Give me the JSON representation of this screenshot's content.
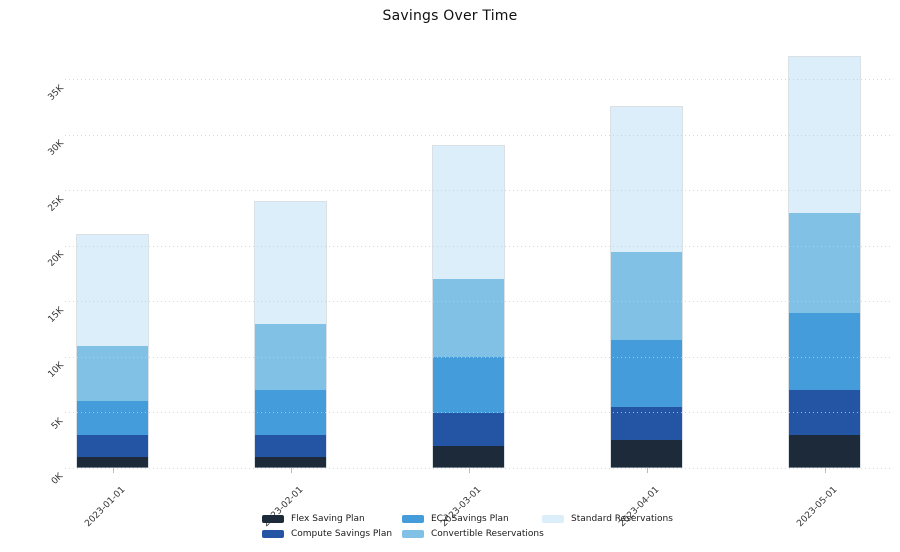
{
  "chart_data": {
    "type": "bar",
    "stacked": true,
    "title": "Savings Over Time",
    "categories": [
      "2023-01-01",
      "2023-02-01",
      "2023-03-01",
      "2023-04-01",
      "2023-05-01"
    ],
    "series": [
      {
        "name": "Flex Saving Plan",
        "color": "#1c2a39",
        "values": [
          1000,
          1000,
          2000,
          2500,
          3000
        ]
      },
      {
        "name": "Compute Savings Plan",
        "color": "#2355a4",
        "values": [
          2000,
          2000,
          3000,
          3000,
          4000
        ]
      },
      {
        "name": "EC2 Savings Plan",
        "color": "#459cdb",
        "values": [
          3000,
          4000,
          5000,
          6000,
          7000
        ]
      },
      {
        "name": "Convertible Reservations",
        "color": "#81c1e5",
        "values": [
          5000,
          6000,
          7000,
          8000,
          9000
        ]
      },
      {
        "name": "Standard Reservations",
        "color": "#ddeefb",
        "values": [
          10000,
          11000,
          12000,
          13000,
          14000
        ]
      }
    ],
    "totals": [
      21000,
      24000,
      29000,
      32500,
      37000
    ],
    "y_ticks": [
      "0K",
      "5K",
      "10K",
      "15K",
      "20K",
      "25K",
      "30K",
      "35K"
    ],
    "y_tick_values": [
      0,
      5000,
      10000,
      15000,
      20000,
      25000,
      30000,
      35000
    ],
    "ylim": [
      0,
      38100
    ],
    "xlabel": "",
    "ylabel": "",
    "grid": "dotted-horizontal",
    "legend_position": "bottom",
    "legend_columns": [
      [
        0,
        1
      ],
      [
        2,
        3
      ],
      [
        4
      ]
    ]
  }
}
